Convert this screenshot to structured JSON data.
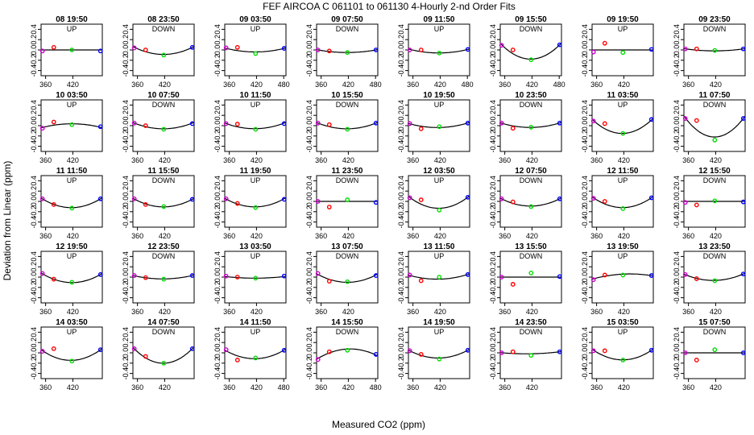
{
  "title": "FEF   AIRCOA C   061101 to 061130   4-Hourly 2-nd Order Fits",
  "xlabel": "Measured CO2 (ppm)",
  "ylabel": "Deviation from Linear (ppm)",
  "colors": {
    "curve": "#000000",
    "low": "#cc00cc",
    "mid1": "#ff0000",
    "mid2": "#00dd00",
    "high": "#0000ff",
    "frame": "#000000"
  },
  "chart_data": {
    "type": "scatter",
    "layout": "grid 5 rows x 8 columns",
    "xlim": [
      350,
      485
    ],
    "ylim": [
      -0.5,
      0.5
    ],
    "yticks": [
      -0.4,
      -0.2,
      0.0,
      0.2,
      0.4
    ],
    "ytick_labels": [
      "-0.4",
      "-0.2",
      "0.0",
      "0.2",
      "0.4"
    ],
    "xticks_default": [
      360,
      420
    ],
    "xticks_full": [
      360,
      420,
      480
    ],
    "xtick_labels_default": [
      "360",
      "420"
    ],
    "xtick_labels_full": [
      "360",
      "420",
      "480"
    ],
    "standard_x": [
      353,
      378,
      418,
      481
    ],
    "panels": [
      {
        "title": "08 19:50",
        "dir": "UP",
        "ticks": "default",
        "pts": [
          -0.02,
          0.05,
          0.0,
          -0.02
        ],
        "curve": [
          0,
          0,
          0,
          0
        ]
      },
      {
        "title": "08 23:50",
        "dir": "DOWN",
        "ticks": "default",
        "pts": [
          0.04,
          0.0,
          -0.1,
          0.05
        ],
        "curve": [
          0.05,
          -0.03,
          -0.09,
          0.05
        ]
      },
      {
        "title": "09 03:50",
        "dir": "UP",
        "ticks": "full",
        "pts": [
          0.04,
          0.05,
          -0.07,
          0.03
        ],
        "curve": [
          0.03,
          -0.01,
          -0.04,
          0.03
        ]
      },
      {
        "title": "09 07:50",
        "dir": "DOWN",
        "ticks": "full",
        "pts": [
          0.0,
          -0.02,
          -0.05,
          0.0
        ],
        "curve": [
          0.0,
          -0.03,
          -0.05,
          0.0
        ]
      },
      {
        "title": "09 11:50",
        "dir": "UP",
        "ticks": "full",
        "pts": [
          0.0,
          0.0,
          -0.06,
          0.01
        ],
        "curve": [
          0.01,
          -0.03,
          -0.06,
          0.01
        ]
      },
      {
        "title": "09 15:50",
        "dir": "DOWN",
        "ticks": "full",
        "pts": [
          0.09,
          0.0,
          -0.19,
          0.1
        ],
        "curve": [
          0.1,
          -0.07,
          -0.18,
          0.1
        ]
      },
      {
        "title": "09 19:50",
        "dir": "UP",
        "ticks": "default",
        "pts": [
          -0.04,
          0.13,
          -0.05,
          0.01
        ],
        "curve": [
          0,
          0,
          0,
          0
        ]
      },
      {
        "title": "09 23:50",
        "dir": "DOWN",
        "ticks": "default",
        "pts": [
          0.02,
          0.02,
          -0.01,
          0.02
        ],
        "curve": [
          0.02,
          0.0,
          -0.02,
          0.02
        ]
      },
      {
        "title": "10 03:50",
        "dir": "UP",
        "ticks": "default",
        "pts": [
          -0.05,
          0.07,
          0.02,
          -0.02
        ],
        "curve": [
          -0.04,
          0.02,
          0.03,
          -0.03
        ]
      },
      {
        "title": "10 07:50",
        "dir": "DOWN",
        "ticks": "default",
        "pts": [
          0.05,
          0.0,
          -0.07,
          0.04
        ],
        "curve": [
          0.05,
          -0.02,
          -0.06,
          0.05
        ]
      },
      {
        "title": "10 11:50",
        "dir": "UP",
        "ticks": "default",
        "pts": [
          0.04,
          0.03,
          -0.07,
          0.04
        ],
        "curve": [
          0.04,
          -0.02,
          -0.06,
          0.05
        ]
      },
      {
        "title": "10 15:50",
        "dir": "DOWN",
        "ticks": "default",
        "pts": [
          0.05,
          0.02,
          -0.07,
          0.05
        ],
        "curve": [
          0.05,
          -0.02,
          -0.06,
          0.05
        ]
      },
      {
        "title": "10 19:50",
        "dir": "UP",
        "ticks": "default",
        "pts": [
          0.04,
          -0.06,
          -0.02,
          0.05
        ],
        "curve": [
          0.04,
          -0.02,
          -0.03,
          0.05
        ]
      },
      {
        "title": "10 23:50",
        "dir": "DOWN",
        "ticks": "default",
        "pts": [
          0.05,
          -0.05,
          -0.03,
          0.05
        ],
        "curve": [
          0.05,
          -0.01,
          -0.03,
          0.05
        ]
      },
      {
        "title": "11 03:50",
        "dir": "UP",
        "ticks": "default",
        "pts": [
          0.09,
          0.04,
          -0.15,
          0.12
        ],
        "curve": [
          0.1,
          -0.06,
          -0.15,
          0.11
        ]
      },
      {
        "title": "11 07:50",
        "dir": "DOWN",
        "ticks": "default",
        "pts": [
          0.14,
          0.1,
          -0.28,
          0.14
        ],
        "curve": [
          0.15,
          -0.08,
          -0.22,
          0.14
        ]
      },
      {
        "title": "11 11:50",
        "dir": "UP",
        "ticks": "default",
        "pts": [
          0.05,
          -0.06,
          -0.13,
          0.05
        ],
        "curve": [
          0.05,
          -0.06,
          -0.12,
          0.05
        ]
      },
      {
        "title": "11 15:50",
        "dir": "DOWN",
        "ticks": "default",
        "pts": [
          0.05,
          -0.06,
          -0.1,
          0.04
        ],
        "curve": [
          0.05,
          -0.06,
          -0.1,
          0.04
        ]
      },
      {
        "title": "11 19:50",
        "dir": "UP",
        "ticks": "default",
        "pts": [
          0.05,
          -0.04,
          -0.12,
          0.04
        ],
        "curve": [
          0.05,
          -0.06,
          -0.1,
          0.05
        ]
      },
      {
        "title": "11 23:50",
        "dir": "DOWN",
        "ticks": "default",
        "pts": [
          0.0,
          -0.11,
          0.03,
          -0.02
        ],
        "curve": [
          0,
          0,
          0,
          0
        ]
      },
      {
        "title": "12 03:50",
        "dir": "UP",
        "ticks": "default",
        "pts": [
          0.07,
          0.03,
          -0.17,
          0.08
        ],
        "curve": [
          0.08,
          -0.06,
          -0.13,
          0.08
        ]
      },
      {
        "title": "12 07:50",
        "dir": "DOWN",
        "ticks": "default",
        "pts": [
          0.05,
          -0.01,
          -0.1,
          0.05
        ],
        "curve": [
          0.05,
          -0.04,
          -0.09,
          0.05
        ]
      },
      {
        "title": "12 11:50",
        "dir": "UP",
        "ticks": "default",
        "pts": [
          0.06,
          0.0,
          -0.14,
          0.07
        ],
        "curve": [
          0.07,
          -0.05,
          -0.12,
          0.07
        ]
      },
      {
        "title": "12 15:50",
        "dir": "DOWN",
        "ticks": "default",
        "pts": [
          -0.02,
          -0.07,
          0.01,
          -0.01
        ],
        "curve": [
          0,
          0,
          0,
          0
        ]
      },
      {
        "title": "12 19:50",
        "dir": "UP",
        "ticks": "default",
        "pts": [
          0.07,
          -0.04,
          -0.1,
          0.05
        ],
        "curve": [
          0.07,
          -0.05,
          -0.1,
          0.05
        ]
      },
      {
        "title": "12 23:50",
        "dir": "DOWN",
        "ticks": "default",
        "pts": [
          0.03,
          -0.01,
          -0.04,
          0.03
        ],
        "curve": [
          0.03,
          -0.02,
          -0.03,
          0.03
        ]
      },
      {
        "title": "13 03:50",
        "dir": "UP",
        "ticks": "default",
        "pts": [
          0.02,
          0.0,
          -0.02,
          0.02
        ],
        "curve": [
          0.01,
          -0.01,
          -0.02,
          0.01
        ]
      },
      {
        "title": "13 07:50",
        "dir": "DOWN",
        "ticks": "default",
        "pts": [
          0.07,
          -0.08,
          -0.09,
          0.03
        ],
        "curve": [
          0.06,
          -0.06,
          -0.09,
          0.04
        ]
      },
      {
        "title": "13 11:50",
        "dir": "UP",
        "ticks": "default",
        "pts": [
          0.04,
          -0.07,
          0.0,
          0.05
        ],
        "curve": [
          0.04,
          -0.03,
          -0.03,
          0.05
        ]
      },
      {
        "title": "13 15:50",
        "dir": "DOWN",
        "ticks": "default",
        "pts": [
          0.0,
          -0.14,
          0.08,
          0.01
        ],
        "curve": [
          0,
          0,
          0,
          0
        ]
      },
      {
        "title": "13 19:50",
        "dir": "UP",
        "ticks": "default",
        "pts": [
          -0.05,
          0.04,
          0.04,
          0.03
        ],
        "curve": [
          -0.04,
          0.03,
          0.05,
          0.03
        ]
      },
      {
        "title": "13 23:50",
        "dir": "DOWN",
        "ticks": "default",
        "pts": [
          0.05,
          -0.03,
          -0.07,
          0.06
        ],
        "curve": [
          0.05,
          -0.03,
          -0.06,
          0.06
        ]
      },
      {
        "title": "14 03:50",
        "dir": "UP",
        "ticks": "default",
        "pts": [
          0.03,
          0.08,
          -0.16,
          0.06
        ],
        "curve": [
          0.04,
          -0.07,
          -0.15,
          0.06
        ]
      },
      {
        "title": "14 07:50",
        "dir": "DOWN",
        "ticks": "default",
        "pts": [
          0.08,
          -0.07,
          -0.2,
          0.08
        ],
        "curve": [
          0.08,
          -0.1,
          -0.2,
          0.08
        ]
      },
      {
        "title": "14 11:50",
        "dir": "UP",
        "ticks": "full",
        "pts": [
          0.06,
          -0.14,
          -0.1,
          0.05
        ],
        "curve": [
          0.05,
          -0.08,
          -0.1,
          0.05
        ]
      },
      {
        "title": "14 15:50",
        "dir": "DOWN",
        "ticks": "full",
        "pts": [
          -0.13,
          0.02,
          0.05,
          -0.03
        ],
        "curve": [
          -0.12,
          0.02,
          0.06,
          -0.04
        ]
      },
      {
        "title": "14 19:50",
        "dir": "UP",
        "ticks": "default",
        "pts": [
          0.04,
          -0.03,
          -0.12,
          0.05
        ],
        "curve": [
          0.04,
          -0.05,
          -0.1,
          0.05
        ]
      },
      {
        "title": "14 23:50",
        "dir": "DOWN",
        "ticks": "default",
        "pts": [
          0.0,
          0.02,
          -0.05,
          0.02
        ],
        "curve": [
          0.0,
          -0.01,
          -0.02,
          0.02
        ]
      },
      {
        "title": "15 03:50",
        "dir": "UP",
        "ticks": "default",
        "pts": [
          0.04,
          0.04,
          -0.14,
          0.05
        ],
        "curve": [
          0.05,
          -0.06,
          -0.14,
          0.05
        ]
      },
      {
        "title": "15 07:50",
        "dir": "DOWN",
        "ticks": "default",
        "pts": [
          0.0,
          -0.14,
          0.06,
          0.0
        ],
        "curve": [
          0,
          0,
          0,
          0
        ]
      }
    ]
  }
}
